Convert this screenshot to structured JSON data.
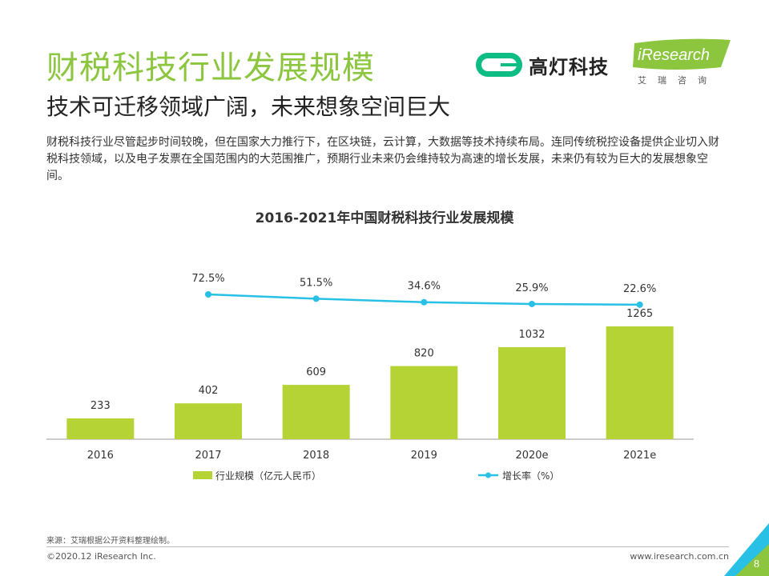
{
  "header": {
    "title": "财税科技行业发展规模",
    "subtitle": "技术可迁移领域广阔，未来想象空间巨大",
    "description": "财税科技行业尽管起步时间较晚，但在国家大力推行下，在区块链，云计算，大数据等技术持续布局。连同传统税控设备提供企业切入财税科技领域，以及电子发票在全国范围内的大范围推广，预期行业未来仍会维持较为高速的增长发展，未来仍有较为巨大的发展想象空间。"
  },
  "logos": {
    "gaodeng_name": "高灯科技",
    "iresearch_brand": "iResearch",
    "iresearch_sub": "艾瑞咨询"
  },
  "colors": {
    "title_green": "#8cc63f",
    "bar_green": "#b5d334",
    "line_blue": "#29c0e6",
    "gaodeng_green": "#0dbd83"
  },
  "chart_data": {
    "type": "bar+line",
    "title": "2016-2021年中国财税科技行业发展规模",
    "categories": [
      "2016",
      "2017",
      "2018",
      "2019",
      "2020e",
      "2021e"
    ],
    "series": [
      {
        "name": "行业规模（亿元人民币）",
        "type": "bar",
        "values": [
          233,
          402,
          609,
          820,
          1032,
          1265
        ],
        "labels": [
          "233",
          "402",
          "609",
          "820",
          "1032",
          "1265"
        ]
      },
      {
        "name": "增长率（%）",
        "type": "line",
        "values": [
          null,
          72.5,
          51.5,
          34.6,
          25.9,
          22.6
        ],
        "labels": [
          "",
          "72.5%",
          "51.5%",
          "34.6%",
          "25.9%",
          "22.6%"
        ]
      }
    ],
    "legend": {
      "position": "bottom"
    },
    "grid": false
  },
  "footer": {
    "source": "来源：艾瑞根据公开资料整理绘制。",
    "copyright": "©2020.12 iResearch Inc.",
    "url": "www.iresearch.com.cn",
    "page": "8"
  }
}
